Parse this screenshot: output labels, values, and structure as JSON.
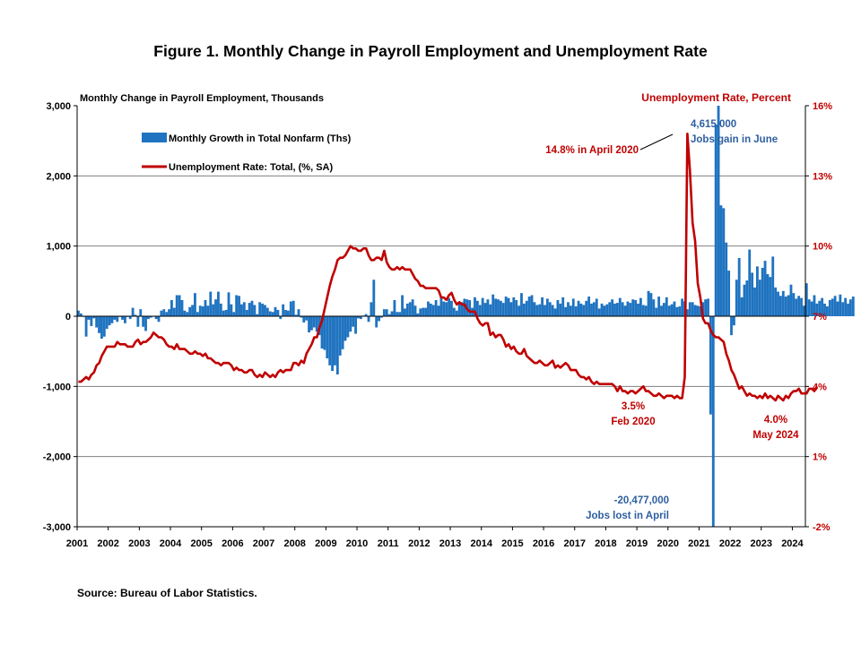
{
  "figure_title": "Figure 1. Monthly Change in Payroll Employment and Unemployment Rate",
  "source_note": "Source: Bureau of Labor Statistics.",
  "colors": {
    "bars": "#1f73c0",
    "line": "#c00000",
    "axis": "#000000",
    "grid": "#808080"
  },
  "chart_data": {
    "type": "bar",
    "left_axis_label": "Monthly Change in Payroll Employment, Thousands",
    "right_axis_label": "Unemployment Rate, Percent",
    "left_ylim": [
      -3000,
      3000
    ],
    "left_ticks": [
      "3,000",
      "2,000",
      "1,000",
      "0",
      "-1,000",
      "-2,000",
      "-3,000"
    ],
    "right_ylim": [
      -2,
      16
    ],
    "right_ticks": [
      "16%",
      "13%",
      "10%",
      "7%",
      "4%",
      "1%",
      "-2%"
    ],
    "x_range": [
      2001,
      2024.42
    ],
    "x_ticks": [
      "2001",
      "2002",
      "2003",
      "2004",
      "2005",
      "2006",
      "2007",
      "2008",
      "2009",
      "2010",
      "2011",
      "2012",
      "2013",
      "2014",
      "2015",
      "2016",
      "2017",
      "2018",
      "2019",
      "2020",
      "2021",
      "2022",
      "2023",
      "2024"
    ],
    "grid": "horizontal",
    "legend": {
      "position": "top-left",
      "bars": "Monthly Growth in Total Nonfarm (Ths)",
      "line": "Unemployment Rate: Total, (%, SA)"
    },
    "series": [
      {
        "name": "Monthly Growth in Total Nonfarm (Ths)",
        "kind": "bar",
        "axis": "left",
        "start": "2001-01",
        "values": [
          80,
          40,
          -10,
          -290,
          -50,
          -140,
          -30,
          -160,
          -240,
          -320,
          -290,
          -180,
          -130,
          -100,
          -50,
          -80,
          -10,
          -50,
          -100,
          -10,
          -40,
          120,
          20,
          -150,
          100,
          -150,
          -210,
          -40,
          -20,
          0,
          -40,
          -80,
          80,
          100,
          60,
          100,
          230,
          120,
          300,
          300,
          230,
          80,
          60,
          130,
          160,
          330,
          60,
          150,
          140,
          230,
          150,
          350,
          170,
          240,
          350,
          180,
          80,
          90,
          340,
          170,
          60,
          300,
          290,
          170,
          200,
          90,
          190,
          220,
          160,
          30,
          200,
          180,
          160,
          120,
          70,
          60,
          130,
          90,
          -40,
          170,
          90,
          80,
          210,
          220,
          20,
          100,
          -20,
          -90,
          -60,
          -230,
          -200,
          -160,
          -220,
          -270,
          -460,
          -480,
          -600,
          -700,
          -780,
          -700,
          -830,
          -560,
          -470,
          -350,
          -300,
          -220,
          -150,
          -250,
          -30,
          -40,
          10,
          30,
          -80,
          200,
          520,
          -160,
          -70,
          -20,
          100,
          100,
          30,
          70,
          230,
          60,
          60,
          300,
          110,
          180,
          200,
          240,
          150,
          40,
          110,
          120,
          120,
          210,
          180,
          160,
          230,
          150,
          270,
          210,
          200,
          260,
          220,
          120,
          80,
          190,
          200,
          250,
          240,
          230,
          120,
          270,
          220,
          160,
          260,
          190,
          240,
          170,
          310,
          250,
          240,
          220,
          190,
          280,
          260,
          200,
          270,
          230,
          150,
          330,
          180,
          220,
          280,
          300,
          200,
          160,
          170,
          270,
          160,
          250,
          200,
          160,
          110,
          230,
          180,
          270,
          130,
          200,
          150,
          250,
          140,
          220,
          180,
          160,
          220,
          280,
          180,
          200,
          250,
          110,
          180,
          150,
          170,
          200,
          240,
          180,
          190,
          260,
          200,
          150,
          210,
          190,
          240,
          230,
          180,
          260,
          160,
          150,
          360,
          330,
          240,
          120,
          280,
          150,
          190,
          270,
          150,
          170,
          210,
          130,
          140,
          250,
          210,
          100,
          200,
          200,
          160,
          150,
          140,
          200,
          240,
          250,
          -1400,
          -20477,
          2730,
          4615,
          1580,
          1540,
          1050,
          650,
          -270,
          -130,
          520,
          830,
          270,
          450,
          510,
          950,
          620,
          410,
          710,
          520,
          690,
          790,
          600,
          560,
          850,
          410,
          350,
          290,
          360,
          280,
          300,
          450,
          330,
          250,
          290,
          260,
          150,
          470,
          240,
          210,
          300,
          180,
          220,
          260,
          180,
          140,
          230,
          250,
          290,
          210,
          310,
          200,
          260,
          180,
          240,
          280
        ]
      },
      {
        "name": "Unemployment Rate: Total, (%, SA)",
        "kind": "line",
        "axis": "right",
        "start": "2001-01",
        "values": [
          4.2,
          4.2,
          4.3,
          4.4,
          4.3,
          4.5,
          4.6,
          4.9,
          5.0,
          5.3,
          5.5,
          5.7,
          5.7,
          5.7,
          5.7,
          5.9,
          5.8,
          5.8,
          5.8,
          5.7,
          5.7,
          5.7,
          5.9,
          6.0,
          5.8,
          5.9,
          5.9,
          6.0,
          6.1,
          6.3,
          6.2,
          6.1,
          6.1,
          6.0,
          5.8,
          5.7,
          5.7,
          5.6,
          5.8,
          5.6,
          5.6,
          5.6,
          5.5,
          5.4,
          5.4,
          5.5,
          5.4,
          5.4,
          5.3,
          5.4,
          5.2,
          5.2,
          5.1,
          5.0,
          5.0,
          4.9,
          5.0,
          5.0,
          5.0,
          4.9,
          4.7,
          4.8,
          4.7,
          4.7,
          4.6,
          4.6,
          4.7,
          4.7,
          4.5,
          4.4,
          4.5,
          4.4,
          4.6,
          4.5,
          4.4,
          4.5,
          4.4,
          4.6,
          4.7,
          4.6,
          4.7,
          4.7,
          4.7,
          5.0,
          5.0,
          4.9,
          5.1,
          5.0,
          5.4,
          5.6,
          5.8,
          6.1,
          6.1,
          6.5,
          6.8,
          7.3,
          7.8,
          8.3,
          8.7,
          9.0,
          9.4,
          9.5,
          9.5,
          9.6,
          9.8,
          10.0,
          9.9,
          9.9,
          9.8,
          9.8,
          9.9,
          9.9,
          9.6,
          9.4,
          9.4,
          9.5,
          9.5,
          9.4,
          9.8,
          9.3,
          9.1,
          9.0,
          9.0,
          9.1,
          9.0,
          9.1,
          9.0,
          9.0,
          9.0,
          8.8,
          8.6,
          8.5,
          8.3,
          8.3,
          8.2,
          8.2,
          8.2,
          8.2,
          8.2,
          8.1,
          7.8,
          7.8,
          7.7,
          7.9,
          8.0,
          7.7,
          7.5,
          7.6,
          7.5,
          7.5,
          7.3,
          7.2,
          7.2,
          7.2,
          6.9,
          6.7,
          6.6,
          6.7,
          6.7,
          6.2,
          6.3,
          6.1,
          6.2,
          6.2,
          6.0,
          5.7,
          5.8,
          5.6,
          5.7,
          5.5,
          5.4,
          5.4,
          5.6,
          5.3,
          5.2,
          5.1,
          5.0,
          5.0,
          5.1,
          5.0,
          4.9,
          4.9,
          5.0,
          5.1,
          4.8,
          4.9,
          4.8,
          4.9,
          5.0,
          4.9,
          4.7,
          4.7,
          4.7,
          4.5,
          4.4,
          4.4,
          4.3,
          4.4,
          4.2,
          4.1,
          4.2,
          4.1,
          4.1,
          4.1,
          4.1,
          4.1,
          4.1,
          4.0,
          3.8,
          4.0,
          3.8,
          3.8,
          3.7,
          3.8,
          3.8,
          3.7,
          3.8,
          3.9,
          4.0,
          3.8,
          3.8,
          3.7,
          3.6,
          3.6,
          3.7,
          3.6,
          3.5,
          3.6,
          3.6,
          3.6,
          3.5,
          3.6,
          3.5,
          3.5,
          4.4,
          14.8,
          13.2,
          11.0,
          10.2,
          8.4,
          7.8,
          6.9,
          6.7,
          6.7,
          6.4,
          6.2,
          6.1,
          6.1,
          6.0,
          5.9,
          5.4,
          5.1,
          4.7,
          4.5,
          4.2,
          3.9,
          4.0,
          3.8,
          3.6,
          3.7,
          3.6,
          3.6,
          3.5,
          3.6,
          3.5,
          3.7,
          3.5,
          3.6,
          3.5,
          3.4,
          3.6,
          3.5,
          3.4,
          3.6,
          3.5,
          3.7,
          3.8,
          3.8,
          3.9,
          3.7,
          3.7,
          3.7,
          3.9,
          3.9,
          3.8,
          4.0
        ]
      }
    ],
    "annotations": {
      "april_peak_rate": "14.8% in April 2020",
      "june_gain_value": "4,615,000",
      "june_gain_text": "Jobs gain in June",
      "april_loss_value": "-20,477,000",
      "april_loss_text": "Jobs lost in April",
      "feb2020_value": "3.5%",
      "feb2020_text": "Feb 2020",
      "may2024_value": "4.0%",
      "may2024_text": "May 2024"
    }
  }
}
